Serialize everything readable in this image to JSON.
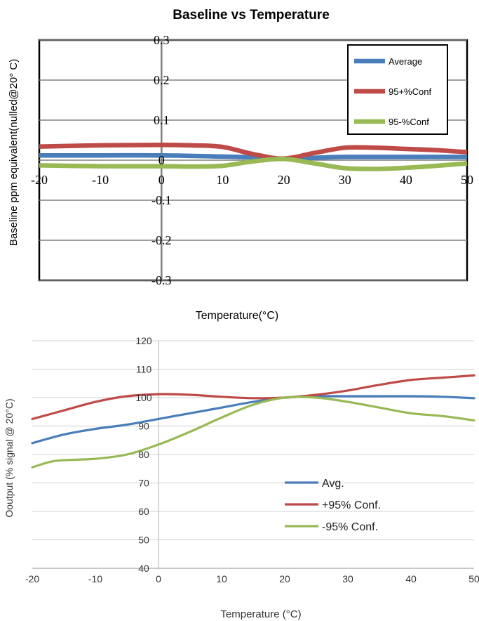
{
  "chart_data": [
    {
      "type": "line",
      "title": "Baseline vs Temperature",
      "xlabel": "Temperature(°C)",
      "ylabel": "Baseline ppm equivalent(nulled@20° C)",
      "xlim": [
        -20,
        50
      ],
      "ylim": [
        -0.3,
        0.3
      ],
      "xticks": [
        "-20",
        "-10",
        "0",
        "10",
        "20",
        "30",
        "40",
        "50"
      ],
      "yticks": [
        "0.3",
        "0.2",
        "0.1",
        "0",
        "-0.1",
        "-0.2",
        "-0.3"
      ],
      "grid": "horizontal",
      "legend_position": "top-right",
      "series": [
        {
          "name": "Average",
          "color": "#4a7ebb",
          "x": [
            -20,
            -10,
            0,
            10,
            15,
            20,
            25,
            30,
            40,
            50
          ],
          "y": [
            0.012,
            0.012,
            0.012,
            0.009,
            0.007,
            0.003,
            0.006,
            0.008,
            0.008,
            0.008
          ]
        },
        {
          "name": "95+%Conf",
          "color": "#be4b48",
          "x": [
            -20,
            -10,
            0,
            5,
            10,
            15,
            20,
            25,
            30,
            35,
            40,
            45,
            50
          ],
          "y": [
            0.034,
            0.037,
            0.038,
            0.037,
            0.033,
            0.015,
            0.004,
            0.018,
            0.031,
            0.031,
            0.028,
            0.025,
            0.02
          ]
        },
        {
          "name": "95-%Conf",
          "color": "#98b954",
          "x": [
            -20,
            -10,
            0,
            5,
            10,
            15,
            20,
            25,
            30,
            35,
            40,
            45,
            50
          ],
          "y": [
            -0.013,
            -0.015,
            -0.015,
            -0.016,
            -0.014,
            -0.003,
            0.003,
            -0.008,
            -0.02,
            -0.022,
            -0.019,
            -0.014,
            -0.008
          ]
        }
      ]
    },
    {
      "type": "line",
      "title": "",
      "xlabel": "Temperature  (°C)",
      "ylabel": "Ooutput  (% signal @ 20°C)",
      "xlim": [
        -20,
        50
      ],
      "ylim": [
        40,
        120
      ],
      "xticks": [
        "-20",
        "-10",
        "0",
        "10",
        "20",
        "30",
        "40",
        "50"
      ],
      "yticks": [
        "120",
        "110",
        "100",
        "90",
        "80",
        "70",
        "60",
        "50",
        "40"
      ],
      "grid": "horizontal",
      "legend_position": "center-right",
      "series": [
        {
          "name": "Avg.",
          "color": "#4a7ebb",
          "x": [
            -20,
            -15,
            -10,
            -5,
            0,
            5,
            10,
            15,
            20,
            25,
            30,
            35,
            40,
            45,
            50
          ],
          "y": [
            84,
            87,
            89,
            90.5,
            92.5,
            94.5,
            96.5,
            98.5,
            100,
            100.5,
            100.5,
            100.5,
            100.5,
            100.3,
            99.8
          ]
        },
        {
          "name": "+95% Conf.",
          "color": "#be4b48",
          "x": [
            -20,
            -15,
            -10,
            -5,
            0,
            5,
            10,
            15,
            20,
            25,
            30,
            35,
            40,
            45,
            50
          ],
          "y": [
            92.5,
            95.5,
            98.5,
            100.5,
            101.2,
            101,
            100.3,
            99.8,
            100,
            101,
            102.5,
            104.5,
            106.2,
            107,
            107.8
          ]
        },
        {
          "name": "-95% Conf.",
          "color": "#98b954",
          "x": [
            -20,
            -17,
            -15,
            -10,
            -5,
            0,
            5,
            10,
            15,
            20,
            25,
            30,
            35,
            40,
            45,
            50
          ],
          "y": [
            75.5,
            77.5,
            78,
            78.5,
            80,
            83.5,
            88,
            93,
            97.5,
            100,
            100,
            98.5,
            96.5,
            94.5,
            93.5,
            92
          ]
        }
      ]
    }
  ]
}
